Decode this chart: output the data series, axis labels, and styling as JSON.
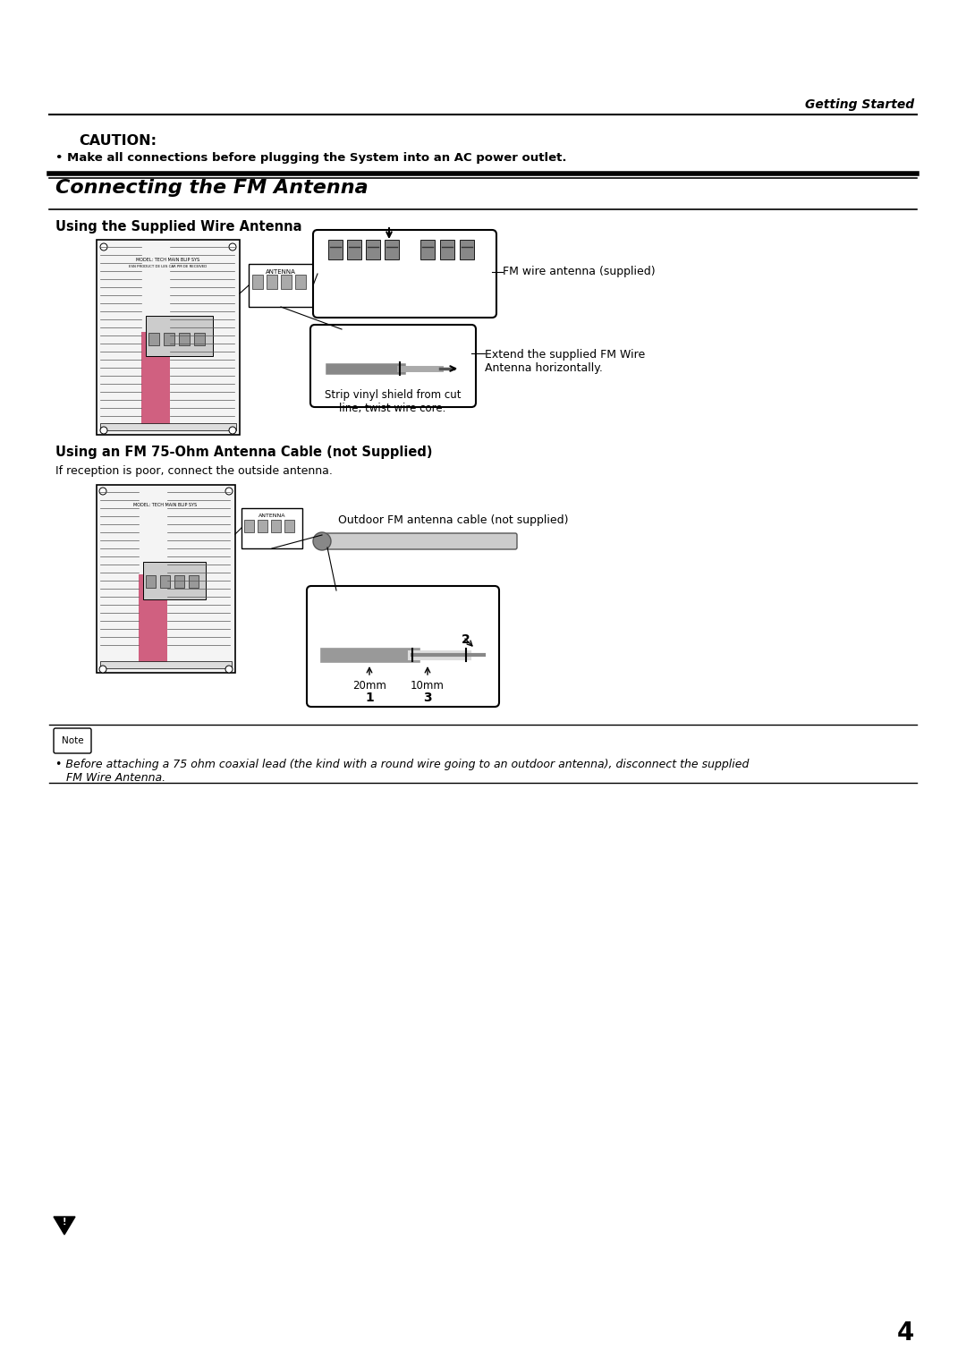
{
  "bg_color": "#ffffff",
  "page_number": "4",
  "header_text": "Getting Started",
  "caution_title": "CAUTION:",
  "caution_bullet": "• Make all connections before plugging the System into an AC power outlet.",
  "section_title": "Connecting the FM Antenna",
  "subsection1": "Using the Supplied Wire Antenna",
  "subsection2": "Using an FM 75-Ohm Antenna Cable (not Supplied)",
  "subsection2_sub": "If reception is poor, connect the outside antenna.",
  "note_bullet": "• Before attaching a 75 ohm coaxial lead (the kind with a round wire going to an outdoor antenna), disconnect the supplied\n   FM Wire Antenna.",
  "label_fm_wire": "FM wire antenna (supplied)",
  "label_extend": "Extend the supplied FM Wire\nAntenna horizontally.",
  "label_strip": "Strip vinyl shield from cut\nline, twist wire core.",
  "label_outdoor": "Outdoor FM antenna cable (not supplied)",
  "label_20mm": "20mm",
  "label_10mm": "10mm",
  "label_1": "1",
  "label_2": "2",
  "label_3": "3",
  "antenna_label": "ANTENNA"
}
